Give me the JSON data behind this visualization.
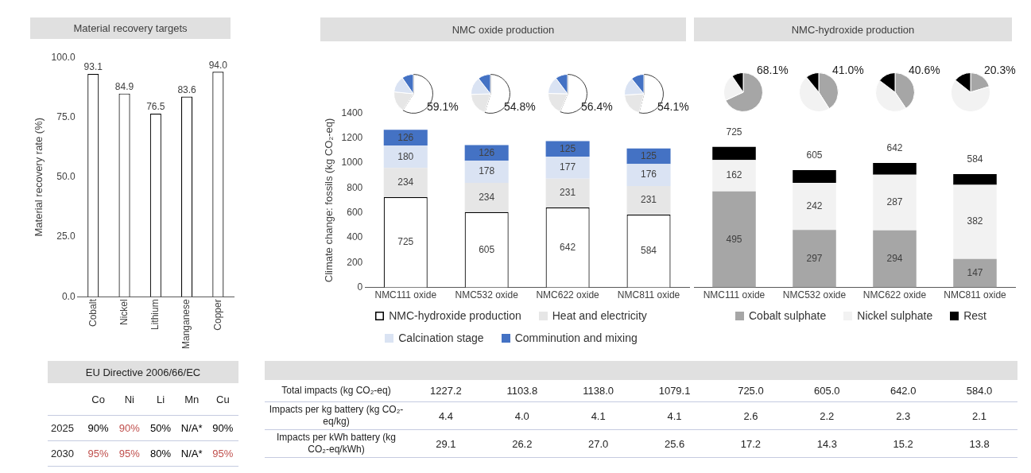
{
  "chart_data": [
    {
      "type": "bar",
      "title": "Material recovery targets",
      "ylabel": "Material recovery rate (%)",
      "categories": [
        "Cobalt",
        "Nickel",
        "Lithium",
        "Manganese",
        "Copper"
      ],
      "values": [
        93.1,
        84.9,
        76.5,
        83.6,
        94.0
      ],
      "value_labels": [
        "93.1",
        "84.9",
        "76.5",
        "83.6",
        "94.0"
      ],
      "color": "#ffffff",
      "ylim": [
        0,
        100
      ],
      "yticks": [
        {
          "value": 0,
          "label": "0.0"
        },
        {
          "value": 25,
          "label": "25.0"
        },
        {
          "value": 50,
          "label": "50.0"
        },
        {
          "value": 75,
          "label": "75.0"
        },
        {
          "value": 100,
          "label": "100.0"
        }
      ],
      "grid": false,
      "legend": false
    },
    {
      "type": "bar",
      "title": "NMC oxide production",
      "ylabel": "Climate change: fossils (kg CO₂-eq)",
      "categories": [
        "NMC111 oxide",
        "NMC532 oxide",
        "NMC622 oxide",
        "NMC811 oxide"
      ],
      "stacked": true,
      "ylim": [
        0,
        1400
      ],
      "yticks": [
        0,
        200,
        400,
        600,
        800,
        1000,
        1200,
        1400
      ],
      "grid": false,
      "legend": "bottom",
      "data_labels": true,
      "series": [
        {
          "name": "NMC-hydroxide production",
          "color": "#ffffff",
          "values": [
            725,
            605,
            642,
            584
          ]
        },
        {
          "name": "Heat and electricity",
          "color": "#e6e6e6",
          "values": [
            234,
            234,
            231,
            231
          ]
        },
        {
          "name": "Calcination stage",
          "color": "#dae3f3",
          "values": [
            180,
            178,
            177,
            176
          ]
        },
        {
          "name": "Comminution and mixing",
          "color": "#4472c4",
          "values": [
            126,
            126,
            125,
            125
          ]
        }
      ]
    },
    {
      "type": "bar",
      "title": "NMC-hydroxide production",
      "categories": [
        "NMC111 oxide",
        "NMC532 oxide",
        "NMC622 oxide",
        "NMC811 oxide"
      ],
      "stacked": true,
      "grid": false,
      "legend": "bottom",
      "tick_labels": "x",
      "totals": [
        "725",
        "605",
        "642",
        "584"
      ],
      "series": [
        {
          "name": "Cobalt sulphate",
          "color": "#a6a6a6",
          "values": [
            495,
            297,
            294,
            147
          ],
          "value_labels": [
            "495",
            "297",
            "294",
            "147"
          ]
        },
        {
          "name": "Nickel sulphate",
          "color": "#f2f2f2",
          "values": [
            162,
            242,
            287,
            382
          ],
          "value_labels": [
            "162",
            "242",
            "287",
            "382"
          ]
        },
        {
          "name": "Rest",
          "color": "#000000",
          "values": [
            68,
            66,
            61,
            55
          ],
          "value_labels": [
            null,
            null,
            null,
            null
          ]
        }
      ]
    },
    {
      "type": "pie",
      "categories": [
        null,
        null,
        null,
        null
      ],
      "values": [
        59.1,
        17.5,
        13.8,
        9.6
      ],
      "value_labels": [
        "59.1%",
        null,
        null,
        null
      ],
      "colors": [
        "#ffffff",
        "#e6e6e6",
        "#dae3f3",
        "#4472c4"
      ]
    },
    {
      "type": "pie",
      "categories": [
        null,
        null,
        null,
        null
      ],
      "values": [
        54.8,
        19.7,
        15.0,
        10.5
      ],
      "value_labels": [
        "54.8%",
        null,
        null,
        null
      ],
      "colors": [
        "#ffffff",
        "#e6e6e6",
        "#dae3f3",
        "#4472c4"
      ]
    },
    {
      "type": "pie",
      "categories": [
        null,
        null,
        null,
        null
      ],
      "values": [
        56.4,
        18.9,
        14.5,
        10.2
      ],
      "value_labels": [
        "56.4%",
        null,
        null,
        null
      ],
      "colors": [
        "#ffffff",
        "#e6e6e6",
        "#dae3f3",
        "#4472c4"
      ]
    },
    {
      "type": "pie",
      "categories": [
        null,
        null,
        null,
        null
      ],
      "values": [
        54.1,
        19.9,
        15.2,
        10.8
      ],
      "value_labels": [
        "54.1%",
        null,
        null,
        null
      ],
      "colors": [
        "#ffffff",
        "#e6e6e6",
        "#dae3f3",
        "#4472c4"
      ]
    },
    {
      "type": "pie",
      "categories": [
        null,
        null,
        null
      ],
      "values": [
        68.1,
        22.3,
        9.6
      ],
      "value_labels": [
        "68.1%",
        null,
        null
      ],
      "colors": [
        "#a6a6a6",
        "#f2f2f2",
        "#000000"
      ]
    },
    {
      "type": "pie",
      "categories": [
        null,
        null,
        null
      ],
      "values": [
        41.0,
        48.1,
        10.9
      ],
      "value_labels": [
        "41.0%",
        null,
        null
      ],
      "colors": [
        "#a6a6a6",
        "#f2f2f2",
        "#000000"
      ]
    },
    {
      "type": "pie",
      "categories": [
        null,
        null,
        null
      ],
      "values": [
        40.6,
        44.7,
        14.7
      ],
      "value_labels": [
        "40.6%",
        null,
        null
      ],
      "colors": [
        "#a6a6a6",
        "#f2f2f2",
        "#000000"
      ]
    },
    {
      "type": "pie",
      "categories": [
        null,
        null,
        null
      ],
      "values": [
        20.3,
        65.4,
        14.3
      ],
      "value_labels": [
        "20.3%",
        null,
        null
      ],
      "colors": [
        "#a6a6a6",
        "#f2f2f2",
        "#000000"
      ]
    },
    {
      "type": "other",
      "title": "EU Directive 2006/66/EC",
      "categories": [
        "Co",
        "Ni",
        "Li",
        "Mn",
        "Cu"
      ],
      "y_categories": [
        "2025",
        "2030"
      ],
      "cell_labels": [
        [
          "90%",
          "90%",
          "50%",
          "N/A*",
          "90%"
        ],
        [
          "95%",
          "95%",
          "80%",
          "N/A*",
          "95%"
        ]
      ],
      "colors": [
        [
          "#000000",
          "#c0504d",
          "#000000",
          "#000000",
          "#000000"
        ],
        [
          "#c0504d",
          "#c0504d",
          "#000000",
          "#000000",
          "#c0504d"
        ]
      ]
    },
    {
      "type": "other",
      "categories": [
        null,
        null,
        null,
        null,
        null,
        null,
        null,
        null
      ],
      "y_categories": [
        "Total impacts (kg CO₂-eq)",
        "Impacts per kg battery (kg CO₂-eq/kg)",
        "Impacts per kWh battery (kg CO₂-eq/kWh)"
      ],
      "cell_labels": [
        [
          "1227.2",
          "1103.8",
          "1138.0",
          "1079.1",
          "725.0",
          "605.0",
          "642.0",
          "584.0"
        ],
        [
          "4.4",
          "4.0",
          "4.1",
          "4.1",
          "2.6",
          "2.2",
          "2.3",
          "2.1"
        ],
        [
          "29.1",
          "26.2",
          "27.0",
          "25.6",
          "17.2",
          "14.3",
          "15.2",
          "13.8"
        ]
      ]
    }
  ]
}
